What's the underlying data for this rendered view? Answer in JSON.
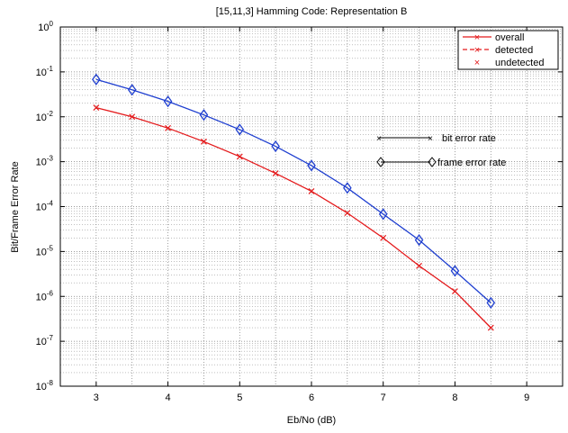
{
  "chart_data": {
    "type": "line",
    "title": "[15,11,3] Hamming Code: Representation B",
    "xlabel": "Eb/No (dB)",
    "ylabel": "Bit/Frame Error Rate",
    "xlim": [
      2.5,
      9.5
    ],
    "ylim_log10": [
      -8,
      0
    ],
    "yscale": "log",
    "grid": true,
    "x_ticks": [
      "3",
      "4",
      "5",
      "6",
      "7",
      "8",
      "9"
    ],
    "y_tick_exponents": [
      "0",
      "-1",
      "-2",
      "-3",
      "-4",
      "-5",
      "-6",
      "-7",
      "-8"
    ],
    "y_tick_base": "10",
    "series": [
      {
        "name": "bit error rate",
        "color": "#e41a1c",
        "marker": "x",
        "x": [
          3,
          3.5,
          4,
          4.5,
          5,
          5.5,
          6,
          6.5,
          7,
          7.5,
          8,
          8.5
        ],
        "y": [
          0.016,
          0.01,
          0.0056,
          0.0028,
          0.0013,
          0.00055,
          0.00022,
          7.2e-05,
          2e-05,
          4.8e-06,
          1.3e-06,
          2e-07
        ]
      },
      {
        "name": "frame error rate",
        "color": "#1f3fd0",
        "marker": "diamond",
        "x": [
          3,
          3.5,
          4,
          4.5,
          5,
          5.5,
          6,
          6.5,
          7,
          7.5,
          8,
          8.5
        ],
        "y": [
          0.068,
          0.04,
          0.022,
          0.011,
          0.0052,
          0.0022,
          0.00082,
          0.00026,
          6.8e-05,
          1.8e-05,
          3.7e-06,
          7.2e-07
        ]
      }
    ],
    "legend": {
      "position": "top-right",
      "color": "#e41a1c",
      "entries": [
        {
          "label": "overall",
          "style": "line-x"
        },
        {
          "label": "detected",
          "style": "dash-x"
        },
        {
          "label": "undetected",
          "style": "x"
        }
      ]
    },
    "annotations": [
      {
        "label": "bit error rate",
        "marker": "x"
      },
      {
        "label": "frame error rate",
        "marker": "diamond"
      }
    ]
  }
}
